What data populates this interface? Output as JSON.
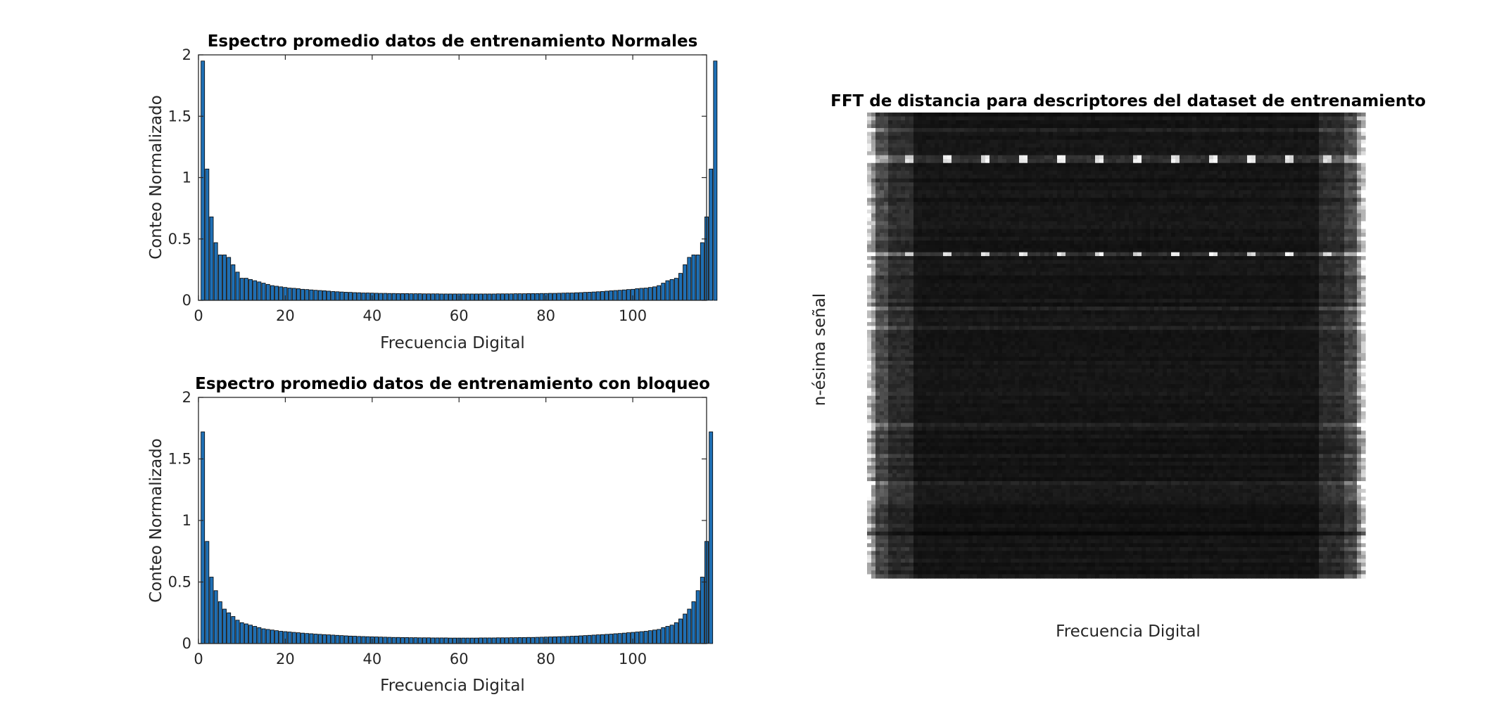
{
  "chart_data": [
    {
      "type": "bar",
      "title": "Espectro promedio datos de entrenamiento Normales",
      "xlabel": "Frecuencia Digital",
      "ylabel": "Conteo Normalizado",
      "xlim": [
        0,
        117
      ],
      "ylim": [
        0,
        2
      ],
      "xticks": [
        "0",
        "20",
        "40",
        "60",
        "80",
        "100"
      ],
      "yticks": [
        "0",
        "0.5",
        "1",
        "1.5",
        "2"
      ],
      "color": "#1f6fb4",
      "x_start": 1,
      "values": [
        1.95,
        1.07,
        0.68,
        0.47,
        0.37,
        0.37,
        0.35,
        0.29,
        0.23,
        0.18,
        0.18,
        0.17,
        0.16,
        0.15,
        0.14,
        0.13,
        0.12,
        0.115,
        0.11,
        0.105,
        0.1,
        0.098,
        0.095,
        0.09,
        0.088,
        0.085,
        0.082,
        0.08,
        0.078,
        0.075,
        0.072,
        0.07,
        0.068,
        0.066,
        0.065,
        0.063,
        0.062,
        0.06,
        0.06,
        0.059,
        0.058,
        0.057,
        0.057,
        0.056,
        0.056,
        0.055,
        0.055,
        0.055,
        0.054,
        0.054,
        0.054,
        0.053,
        0.053,
        0.053,
        0.053,
        0.052,
        0.052,
        0.052,
        0.052,
        0.052,
        0.052,
        0.052,
        0.052,
        0.052,
        0.052,
        0.052,
        0.052,
        0.052,
        0.053,
        0.053,
        0.053,
        0.053,
        0.054,
        0.054,
        0.054,
        0.055,
        0.055,
        0.055,
        0.056,
        0.056,
        0.057,
        0.057,
        0.058,
        0.059,
        0.06,
        0.06,
        0.062,
        0.063,
        0.065,
        0.066,
        0.068,
        0.07,
        0.072,
        0.075,
        0.078,
        0.08,
        0.082,
        0.085,
        0.088,
        0.09,
        0.095,
        0.098,
        0.1,
        0.105,
        0.11,
        0.12,
        0.14,
        0.16,
        0.17,
        0.18,
        0.22,
        0.29,
        0.35,
        0.37,
        0.37,
        0.47,
        0.68,
        1.07,
        1.95
      ]
    },
    {
      "type": "bar",
      "title": "Espectro promedio datos de entrenamiento con bloqueo",
      "xlabel": "Frecuencia Digital",
      "ylabel": "Conteo Normalizado",
      "xlim": [
        0,
        117
      ],
      "ylim": [
        0,
        2
      ],
      "xticks": [
        "0",
        "20",
        "40",
        "60",
        "80",
        "100"
      ],
      "yticks": [
        "0",
        "0.5",
        "1",
        "1.5",
        "2"
      ],
      "color": "#1f6fb4",
      "x_start": 1,
      "values": [
        1.72,
        0.83,
        0.54,
        0.43,
        0.34,
        0.28,
        0.25,
        0.22,
        0.19,
        0.17,
        0.16,
        0.15,
        0.14,
        0.13,
        0.12,
        0.115,
        0.11,
        0.105,
        0.1,
        0.097,
        0.094,
        0.091,
        0.088,
        0.085,
        0.082,
        0.08,
        0.077,
        0.075,
        0.073,
        0.071,
        0.069,
        0.067,
        0.065,
        0.063,
        0.061,
        0.06,
        0.058,
        0.057,
        0.056,
        0.055,
        0.054,
        0.053,
        0.052,
        0.051,
        0.05,
        0.05,
        0.049,
        0.049,
        0.048,
        0.048,
        0.047,
        0.047,
        0.047,
        0.046,
        0.046,
        0.046,
        0.046,
        0.045,
        0.045,
        0.045,
        0.045,
        0.045,
        0.045,
        0.045,
        0.046,
        0.046,
        0.046,
        0.046,
        0.047,
        0.047,
        0.047,
        0.048,
        0.048,
        0.049,
        0.049,
        0.05,
        0.05,
        0.051,
        0.052,
        0.053,
        0.054,
        0.055,
        0.056,
        0.057,
        0.058,
        0.06,
        0.061,
        0.063,
        0.065,
        0.067,
        0.069,
        0.071,
        0.073,
        0.075,
        0.077,
        0.08,
        0.082,
        0.085,
        0.088,
        0.091,
        0.094,
        0.097,
        0.1,
        0.105,
        0.11,
        0.115,
        0.13,
        0.14,
        0.15,
        0.17,
        0.2,
        0.24,
        0.28,
        0.34,
        0.43,
        0.54,
        0.83,
        1.72
      ]
    },
    {
      "type": "heatmap",
      "title": "FFT de distancia para descriptores del dataset de entrenamiento",
      "xlabel": "Frecuencia Digital",
      "ylabel": "n-ésima señal",
      "colormap": "gray"
    }
  ]
}
